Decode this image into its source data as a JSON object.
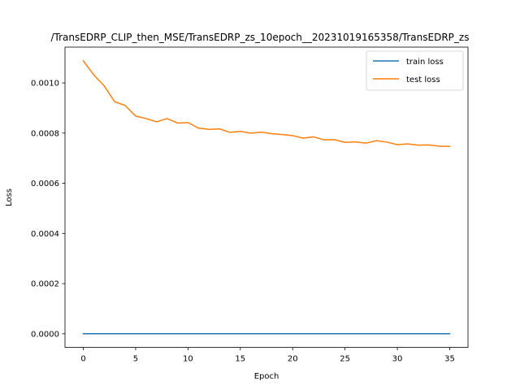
{
  "chart_data": {
    "type": "line",
    "title": "/TransEDRP_CLIP_then_MSE/TransEDRP_zs_10epoch__20231019165358/TransEDRP_zs",
    "xlabel": "Epoch",
    "ylabel": "Loss",
    "xlim": [
      -1.75,
      36.75
    ],
    "ylim": [
      -5.44e-05,
      0.0011428
    ],
    "xticks": [
      0,
      5,
      10,
      15,
      20,
      25,
      30,
      35
    ],
    "xtick_labels": [
      "0",
      "5",
      "10",
      "15",
      "20",
      "25",
      "30",
      "35"
    ],
    "yticks": [
      0.0,
      0.0002,
      0.0004,
      0.0006,
      0.0008,
      0.001
    ],
    "ytick_labels": [
      "0.0000",
      "0.0002",
      "0.0004",
      "0.0006",
      "0.0008",
      "0.0010"
    ],
    "grid": false,
    "legend_position": "top-right",
    "x": [
      0,
      1,
      2,
      3,
      4,
      5,
      6,
      7,
      8,
      9,
      10,
      11,
      12,
      13,
      14,
      15,
      16,
      17,
      18,
      19,
      20,
      21,
      22,
      23,
      24,
      25,
      26,
      27,
      28,
      29,
      30,
      31,
      32,
      33,
      34,
      35
    ],
    "series": [
      {
        "name": "train loss",
        "color": "#1f77b4",
        "values": [
          1e-07,
          1e-07,
          1e-07,
          1e-07,
          1e-07,
          1e-07,
          1e-07,
          1e-07,
          1e-07,
          1e-07,
          1e-07,
          1e-07,
          1e-07,
          1e-07,
          1e-07,
          1e-07,
          1e-07,
          1e-07,
          1e-07,
          1e-07,
          1e-07,
          1e-07,
          1e-07,
          1e-07,
          1e-07,
          1e-07,
          1e-07,
          1e-07,
          1e-07,
          1e-07,
          1e-07,
          1e-07,
          1e-07,
          1e-07,
          1e-07,
          1e-07
        ]
      },
      {
        "name": "test loss",
        "color": "#ff7f0e",
        "values": [
          0.001088,
          0.001032,
          0.000988,
          0.000925,
          0.00091,
          0.000868,
          0.000858,
          0.000845,
          0.000858,
          0.00084,
          0.000842,
          0.00082,
          0.000815,
          0.000817,
          0.000803,
          0.000807,
          0.0008,
          0.000804,
          0.000798,
          0.000794,
          0.00079,
          0.00078,
          0.000785,
          0.000773,
          0.000774,
          0.000763,
          0.000765,
          0.00076,
          0.00077,
          0.000764,
          0.000754,
          0.000757,
          0.000752,
          0.000753,
          0.000748,
          0.000747
        ]
      }
    ]
  }
}
